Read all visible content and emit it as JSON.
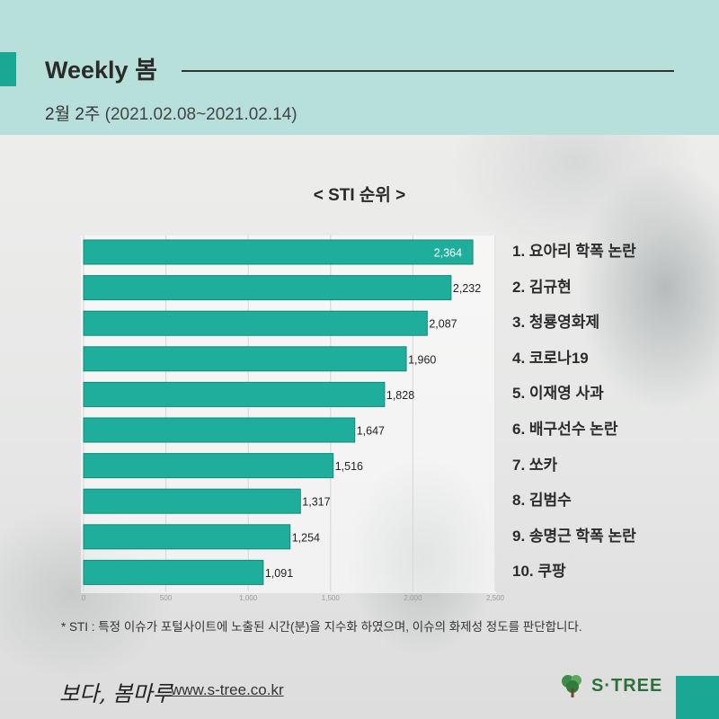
{
  "header": {
    "title": "Weekly 봄",
    "week": "2월 2주",
    "date_range": "(2021.02.08~2021.02.14)"
  },
  "colors": {
    "accent": "#1aa895",
    "header_bg": "#b7e0da",
    "bar": "#1fae9c"
  },
  "chart_data": {
    "type": "bar",
    "orientation": "horizontal",
    "title": "< STI 순위 >",
    "categories": [
      "1. 요아리 학폭 논란",
      "2. 김규현",
      "3. 청룡영화제",
      "4. 코로나19",
      "5. 이재영 사과",
      "6. 배구선수 논란",
      "7. 쏘카",
      "8. 김범수",
      "9. 송명근 학폭 논란",
      "10. 쿠팡"
    ],
    "values": [
      2364,
      2232,
      2087,
      1960,
      1828,
      1647,
      1516,
      1317,
      1254,
      1091
    ],
    "value_labels": [
      "2,364",
      "2,232",
      "2,087",
      "1,960",
      "1,828",
      "1,647",
      "1,516",
      "1,317",
      "1,254",
      "1,091"
    ],
    "xlim": [
      0,
      2500
    ],
    "x_ticks": [
      0,
      500,
      1000,
      1500,
      2000,
      2500
    ],
    "x_tick_labels": [
      "0",
      "500",
      "1,000",
      "1,500",
      "2,000",
      "2,500"
    ],
    "grid": "vertical",
    "legend": "none"
  },
  "footnote": "* STI : 특정 이슈가 포털사이트에 노출된 시간(분)을 지수화 하였으며, 이슈의 화제성 정도를 판단합니다.",
  "footer": {
    "signature": "보다, 봄마루",
    "url": "www.s-tree.co.kr",
    "logo_text": "S·TREE",
    "logo_icon": "tree-icon"
  }
}
